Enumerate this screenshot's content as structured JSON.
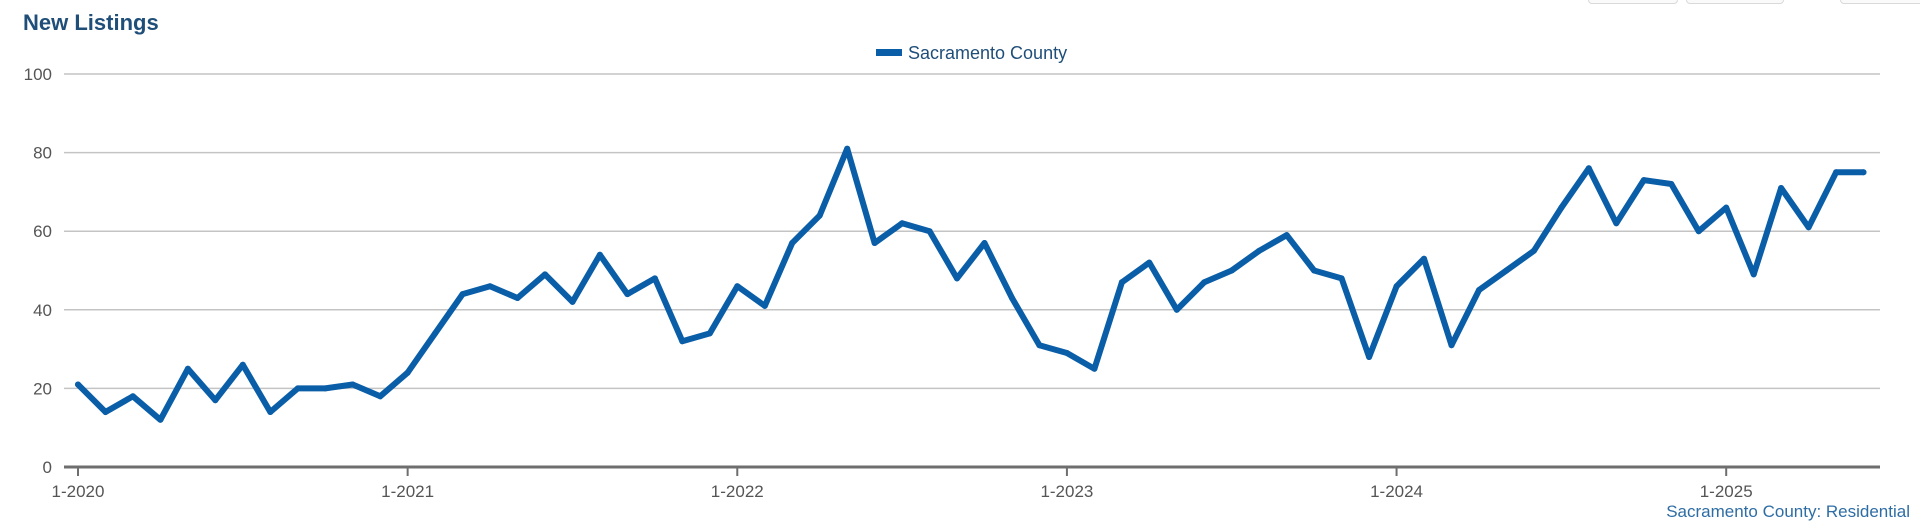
{
  "title": "New Listings",
  "source_note": "Sacramento County: Residential",
  "chart_data": {
    "type": "line",
    "title": "New Listings",
    "xlabel": "",
    "ylabel": "",
    "ylim": [
      0,
      100
    ],
    "yticks": [
      0,
      20,
      40,
      60,
      80,
      100
    ],
    "xticks": [
      "1-2020",
      "1-2021",
      "1-2022",
      "1-2023",
      "1-2024",
      "1-2025"
    ],
    "x_start": "1-2020",
    "x_end": "6-2025",
    "grid": true,
    "legend": "top-center",
    "series": [
      {
        "name": "Sacramento County",
        "color": "#0a5ea8",
        "x": [
          "1-2020",
          "2-2020",
          "3-2020",
          "4-2020",
          "5-2020",
          "6-2020",
          "7-2020",
          "8-2020",
          "9-2020",
          "10-2020",
          "11-2020",
          "12-2020",
          "1-2021",
          "2-2021",
          "3-2021",
          "4-2021",
          "5-2021",
          "6-2021",
          "7-2021",
          "8-2021",
          "9-2021",
          "10-2021",
          "11-2021",
          "12-2021",
          "1-2022",
          "2-2022",
          "3-2022",
          "4-2022",
          "5-2022",
          "6-2022",
          "7-2022",
          "8-2022",
          "9-2022",
          "10-2022",
          "11-2022",
          "12-2022",
          "1-2023",
          "2-2023",
          "3-2023",
          "4-2023",
          "5-2023",
          "6-2023",
          "7-2023",
          "8-2023",
          "9-2023",
          "10-2023",
          "11-2023",
          "12-2023",
          "1-2024",
          "2-2024",
          "3-2024",
          "4-2024",
          "5-2024",
          "6-2024",
          "7-2024",
          "8-2024",
          "9-2024",
          "10-2024",
          "11-2024",
          "12-2024",
          "1-2025",
          "2-2025",
          "3-2025",
          "4-2025",
          "5-2025",
          "6-2025"
        ],
        "values": [
          21,
          14,
          18,
          12,
          25,
          17,
          26,
          14,
          20,
          20,
          21,
          18,
          24,
          34,
          44,
          46,
          43,
          49,
          42,
          54,
          44,
          48,
          32,
          34,
          46,
          41,
          57,
          64,
          81,
          57,
          62,
          60,
          48,
          57,
          43,
          31,
          29,
          25,
          47,
          52,
          40,
          47,
          50,
          55,
          59,
          50,
          48,
          28,
          46,
          53,
          31,
          45,
          50,
          55,
          66,
          76,
          62,
          73,
          72,
          60,
          66,
          49,
          71,
          61,
          75,
          75
        ]
      }
    ]
  }
}
